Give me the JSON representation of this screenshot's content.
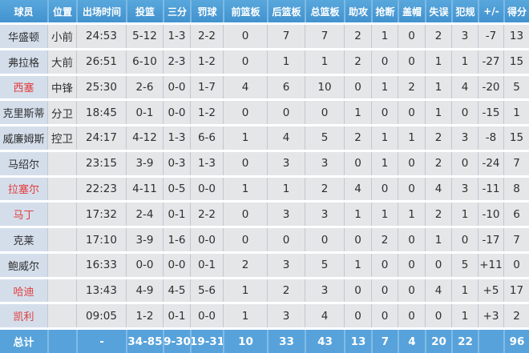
{
  "colors": {
    "header_bg_top": "#58a7dc",
    "header_bg_bottom": "#4292cf",
    "header_divider": "#7db9e5",
    "header_text": "#ffffff",
    "row_bg": "#e4e6e8",
    "name_col_bg": "#d4deeb",
    "cell_divider": "#c2c8d0",
    "gap": "#ffffff",
    "total_bg": "#57a2db",
    "total_divider": "#82bce6",
    "total_text": "#ffffff",
    "text": "#2f2f2f",
    "red_name": "#e23c3c"
  },
  "table": {
    "columns": [
      {
        "key": "player",
        "label": "球员"
      },
      {
        "key": "pos",
        "label": "位置"
      },
      {
        "key": "time",
        "label": "出场时间"
      },
      {
        "key": "fg",
        "label": "投篮"
      },
      {
        "key": "tp",
        "label": "三分"
      },
      {
        "key": "ft",
        "label": "罚球"
      },
      {
        "key": "oreb",
        "label": "前篮板"
      },
      {
        "key": "dreb",
        "label": "后篮板"
      },
      {
        "key": "reb",
        "label": "总篮板"
      },
      {
        "key": "ast",
        "label": "助攻"
      },
      {
        "key": "stl",
        "label": "抢断"
      },
      {
        "key": "blk",
        "label": "盖帽"
      },
      {
        "key": "tov",
        "label": "失误"
      },
      {
        "key": "pf",
        "label": "犯规"
      },
      {
        "key": "pm",
        "label": "+/-"
      },
      {
        "key": "pts",
        "label": "得分"
      }
    ],
    "rows": [
      {
        "player": "华盛顿",
        "name_red": false,
        "pos": "小前",
        "time": "24:53",
        "fg": "5-12",
        "tp": "1-3",
        "ft": "2-2",
        "oreb": "0",
        "dreb": "7",
        "reb": "7",
        "ast": "2",
        "stl": "1",
        "blk": "0",
        "tov": "2",
        "pf": "3",
        "pm": "-7",
        "pts": "13"
      },
      {
        "player": "弗拉格",
        "name_red": false,
        "pos": "大前",
        "time": "26:51",
        "fg": "6-10",
        "tp": "2-3",
        "ft": "1-2",
        "oreb": "0",
        "dreb": "1",
        "reb": "1",
        "ast": "2",
        "stl": "0",
        "blk": "0",
        "tov": "1",
        "pf": "1",
        "pm": "-27",
        "pts": "15"
      },
      {
        "player": "西塞",
        "name_red": true,
        "pos": "中锋",
        "time": "25:30",
        "fg": "2-6",
        "tp": "0-0",
        "ft": "1-7",
        "oreb": "4",
        "dreb": "6",
        "reb": "10",
        "ast": "0",
        "stl": "1",
        "blk": "2",
        "tov": "1",
        "pf": "4",
        "pm": "-20",
        "pts": "5"
      },
      {
        "player": "克里斯蒂",
        "name_red": false,
        "pos": "分卫",
        "time": "18:45",
        "fg": "0-1",
        "tp": "0-0",
        "ft": "1-2",
        "oreb": "0",
        "dreb": "0",
        "reb": "0",
        "ast": "1",
        "stl": "0",
        "blk": "0",
        "tov": "1",
        "pf": "0",
        "pm": "-15",
        "pts": "1"
      },
      {
        "player": "威廉姆斯",
        "name_red": false,
        "pos": "控卫",
        "time": "24:17",
        "fg": "4-12",
        "tp": "1-3",
        "ft": "6-6",
        "oreb": "1",
        "dreb": "4",
        "reb": "5",
        "ast": "2",
        "stl": "1",
        "blk": "1",
        "tov": "2",
        "pf": "3",
        "pm": "-8",
        "pts": "15"
      },
      {
        "player": "马绍尔",
        "name_red": false,
        "pos": "",
        "time": "23:15",
        "fg": "3-9",
        "tp": "0-3",
        "ft": "1-3",
        "oreb": "0",
        "dreb": "3",
        "reb": "3",
        "ast": "0",
        "stl": "1",
        "blk": "0",
        "tov": "2",
        "pf": "0",
        "pm": "-24",
        "pts": "7"
      },
      {
        "player": "拉塞尔",
        "name_red": true,
        "pos": "",
        "time": "22:23",
        "fg": "4-11",
        "tp": "0-5",
        "ft": "0-0",
        "oreb": "1",
        "dreb": "1",
        "reb": "2",
        "ast": "4",
        "stl": "0",
        "blk": "0",
        "tov": "4",
        "pf": "3",
        "pm": "-11",
        "pts": "8"
      },
      {
        "player": "马丁",
        "name_red": true,
        "pos": "",
        "time": "17:32",
        "fg": "2-4",
        "tp": "0-1",
        "ft": "2-2",
        "oreb": "0",
        "dreb": "3",
        "reb": "3",
        "ast": "1",
        "stl": "1",
        "blk": "1",
        "tov": "2",
        "pf": "1",
        "pm": "-10",
        "pts": "6"
      },
      {
        "player": "克莱",
        "name_red": false,
        "pos": "",
        "time": "17:10",
        "fg": "3-9",
        "tp": "1-6",
        "ft": "0-0",
        "oreb": "0",
        "dreb": "0",
        "reb": "0",
        "ast": "0",
        "stl": "2",
        "blk": "0",
        "tov": "1",
        "pf": "0",
        "pm": "-17",
        "pts": "7"
      },
      {
        "player": "鲍威尔",
        "name_red": false,
        "pos": "",
        "time": "16:33",
        "fg": "0-0",
        "tp": "0-0",
        "ft": "0-1",
        "oreb": "2",
        "dreb": "3",
        "reb": "5",
        "ast": "1",
        "stl": "0",
        "blk": "0",
        "tov": "0",
        "pf": "5",
        "pm": "+11",
        "pts": "0"
      },
      {
        "player": "哈迪",
        "name_red": true,
        "pos": "",
        "time": "13:43",
        "fg": "4-9",
        "tp": "4-5",
        "ft": "5-6",
        "oreb": "1",
        "dreb": "2",
        "reb": "3",
        "ast": "0",
        "stl": "0",
        "blk": "0",
        "tov": "4",
        "pf": "1",
        "pm": "+5",
        "pts": "17"
      },
      {
        "player": "凯利",
        "name_red": true,
        "pos": "",
        "time": "09:05",
        "fg": "1-2",
        "tp": "0-1",
        "ft": "0-0",
        "oreb": "1",
        "dreb": "3",
        "reb": "4",
        "ast": "0",
        "stl": "0",
        "blk": "0",
        "tov": "0",
        "pf": "1",
        "pm": "+3",
        "pts": "2"
      }
    ],
    "total": {
      "player": "总计",
      "pos": "",
      "time": "-",
      "fg": "34-85",
      "tp": "9-30",
      "ft": "19-31",
      "oreb": "10",
      "dreb": "33",
      "reb": "43",
      "ast": "13",
      "stl": "7",
      "blk": "4",
      "tov": "20",
      "pf": "22",
      "pm": "",
      "pts": "96"
    }
  }
}
